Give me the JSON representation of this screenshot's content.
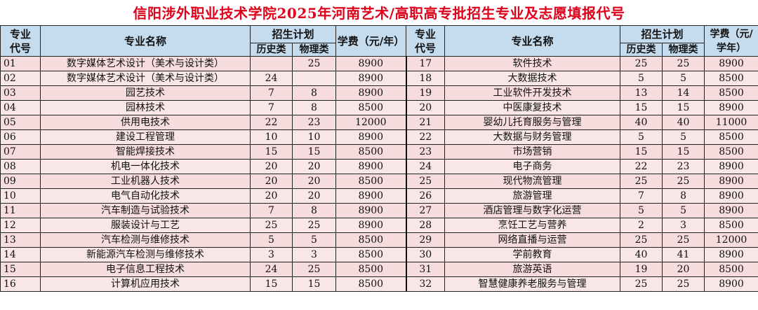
{
  "title": "信阳涉外职业技术学院2025年河南艺术/高职高专批招生专业及志愿填报代号",
  "headers": {
    "code": "专业代号",
    "name": "专业名称",
    "plan": "招生计划",
    "history": "历史类",
    "physics": "物理类",
    "fee_left": "学费（元/年）",
    "fee_right": "学费（元/学年）"
  },
  "rows": [
    {
      "left": {
        "code": "01",
        "name": "数字媒体艺术设计（美术与设计类）",
        "hist": "",
        "phys": "25",
        "fee": "8900"
      },
      "right": {
        "code": "17",
        "name": "软件技术",
        "hist": "25",
        "phys": "25",
        "fee": "8900"
      }
    },
    {
      "left": {
        "code": "02",
        "name": "数字媒体艺术设计（美术与设计类）",
        "hist": "24",
        "phys": "",
        "fee": "8900"
      },
      "right": {
        "code": "18",
        "name": "大数据技术",
        "hist": "5",
        "phys": "5",
        "fee": "8500"
      }
    },
    {
      "left": {
        "code": "03",
        "name": "园艺技术",
        "hist": "7",
        "phys": "8",
        "fee": "8900"
      },
      "right": {
        "code": "19",
        "name": "工业软件开发技术",
        "hist": "13",
        "phys": "14",
        "fee": "8500"
      }
    },
    {
      "left": {
        "code": "04",
        "name": "园林技术",
        "hist": "7",
        "phys": "8",
        "fee": "8500"
      },
      "right": {
        "code": "20",
        "name": "中医康复技术",
        "hist": "15",
        "phys": "15",
        "fee": "8900"
      }
    },
    {
      "left": {
        "code": "05",
        "name": "供用电技术",
        "hist": "22",
        "phys": "23",
        "fee": "12000"
      },
      "right": {
        "code": "21",
        "name": "婴幼儿托育服务与管理",
        "hist": "40",
        "phys": "40",
        "fee": "11000"
      }
    },
    {
      "left": {
        "code": "06",
        "name": "建设工程管理",
        "hist": "10",
        "phys": "10",
        "fee": "8900"
      },
      "right": {
        "code": "22",
        "name": "大数据与财务管理",
        "hist": "5",
        "phys": "5",
        "fee": "8500"
      }
    },
    {
      "left": {
        "code": "07",
        "name": "智能焊接技术",
        "hist": "15",
        "phys": "15",
        "fee": "8500"
      },
      "right": {
        "code": "23",
        "name": "市场营销",
        "hist": "15",
        "phys": "15",
        "fee": "8500"
      }
    },
    {
      "left": {
        "code": "08",
        "name": "机电一体化技术",
        "hist": "20",
        "phys": "20",
        "fee": "8900"
      },
      "right": {
        "code": "24",
        "name": "电子商务",
        "hist": "22",
        "phys": "23",
        "fee": "8900"
      }
    },
    {
      "left": {
        "code": "09",
        "name": "工业机器人技术",
        "hist": "20",
        "phys": "20",
        "fee": "8500"
      },
      "right": {
        "code": "25",
        "name": "现代物流管理",
        "hist": "25",
        "phys": "25",
        "fee": "8900"
      }
    },
    {
      "left": {
        "code": "10",
        "name": "电气自动化技术",
        "hist": "20",
        "phys": "20",
        "fee": "8900"
      },
      "right": {
        "code": "26",
        "name": "旅游管理",
        "hist": "7",
        "phys": "8",
        "fee": "8900"
      }
    },
    {
      "left": {
        "code": "11",
        "name": "汽车制造与试验技术",
        "hist": "7",
        "phys": "8",
        "fee": "8900"
      },
      "right": {
        "code": "27",
        "name": "酒店管理与数字化运营",
        "hist": "5",
        "phys": "5",
        "fee": "8900"
      }
    },
    {
      "left": {
        "code": "12",
        "name": "服装设计与工艺",
        "hist": "25",
        "phys": "25",
        "fee": "8900"
      },
      "right": {
        "code": "28",
        "name": "烹饪工艺与营养",
        "hist": "2",
        "phys": "3",
        "fee": "8500"
      }
    },
    {
      "left": {
        "code": "13",
        "name": "汽车检测与维修技术",
        "hist": "5",
        "phys": "5",
        "fee": "8500"
      },
      "right": {
        "code": "29",
        "name": "网络直播与运营",
        "hist": "25",
        "phys": "25",
        "fee": "12000"
      }
    },
    {
      "left": {
        "code": "14",
        "name": "新能源汽车检测与维修技术",
        "hist": "3",
        "phys": "3",
        "fee": "8500"
      },
      "right": {
        "code": "30",
        "name": "学前教育",
        "hist": "40",
        "phys": "41",
        "fee": "8900"
      }
    },
    {
      "left": {
        "code": "15",
        "name": "电子信息工程技术",
        "hist": "24",
        "phys": "25",
        "fee": "8500"
      },
      "right": {
        "code": "31",
        "name": "旅游英语",
        "hist": "19",
        "phys": "20",
        "fee": "8500"
      }
    },
    {
      "left": {
        "code": "16",
        "name": "计算机应用技术",
        "hist": "15",
        "phys": "15",
        "fee": "8500"
      },
      "right": {
        "code": "32",
        "name": "智慧健康养老服务与管理",
        "hist": "25",
        "phys": "25",
        "fee": "8900"
      }
    }
  ]
}
